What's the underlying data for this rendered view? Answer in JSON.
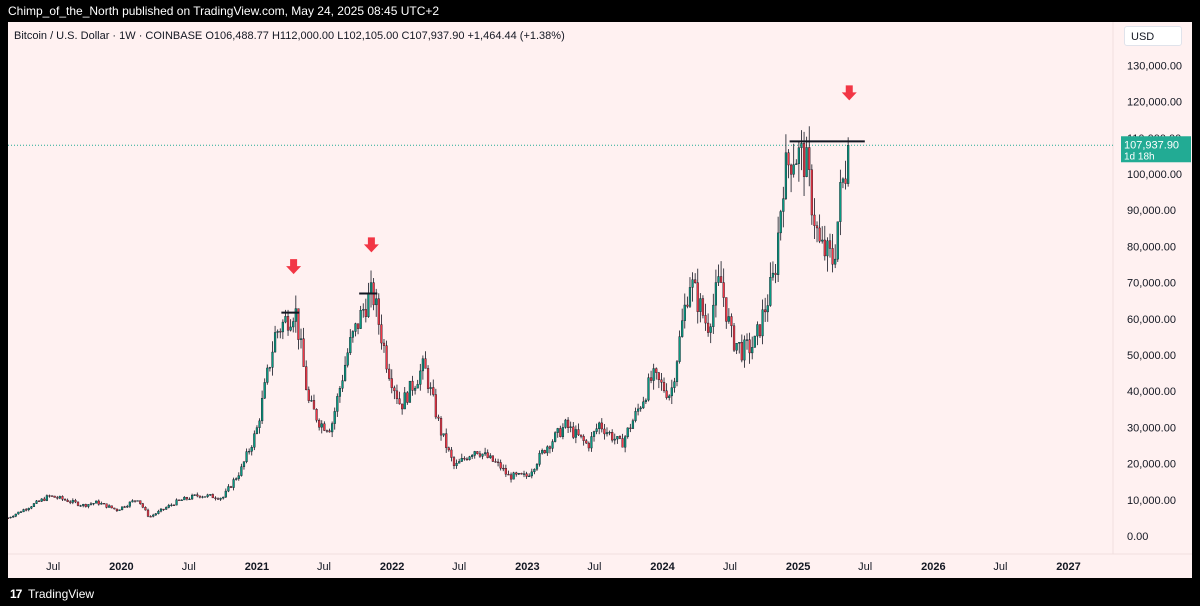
{
  "publish_line": "Chimp_of_the_North published on TradingView.com, May 24, 2025 08:45 UTC+2",
  "header_line": "Bitcoin / U.S. Dollar · 1W · COINBASE  O106,488.77  H112,000.00  L102,105.00  C107,937.90  +1,464.44 (+1.38%)",
  "currency_label": "USD",
  "brand_logo": "17",
  "brand_name": "TradingView",
  "colors": {
    "up": "#089981",
    "down": "#f23645",
    "background": "#fff1f1",
    "arrow": "#f23645",
    "last_price_bg": "#22ab94"
  },
  "chart_data": {
    "type": "candlestick",
    "title": "Bitcoin / U.S. Dollar · 1W · COINBASE",
    "ylim": [
      0,
      135000
    ],
    "y_ticks": [
      "0.00",
      "10,000.00",
      "20,000.00",
      "30,000.00",
      "40,000.00",
      "50,000.00",
      "60,000.00",
      "70,000.00",
      "80,000.00",
      "90,000.00",
      "100,000.00",
      "110,000.00",
      "120,000.00",
      "130,000.00"
    ],
    "y_tick_values": [
      0,
      10000,
      20000,
      30000,
      40000,
      50000,
      60000,
      70000,
      80000,
      90000,
      100000,
      110000,
      120000,
      130000
    ],
    "x_ticks": [
      {
        "label": "Jul",
        "date": "2019-07-01",
        "bold": false
      },
      {
        "label": "2020",
        "date": "2020-01-01",
        "bold": true
      },
      {
        "label": "Jul",
        "date": "2020-07-01",
        "bold": false
      },
      {
        "label": "2021",
        "date": "2021-01-01",
        "bold": true
      },
      {
        "label": "Jul",
        "date": "2021-07-01",
        "bold": false
      },
      {
        "label": "2022",
        "date": "2022-01-01",
        "bold": true
      },
      {
        "label": "Jul",
        "date": "2022-07-01",
        "bold": false
      },
      {
        "label": "2023",
        "date": "2023-01-01",
        "bold": true
      },
      {
        "label": "Jul",
        "date": "2023-07-01",
        "bold": false
      },
      {
        "label": "2024",
        "date": "2024-01-01",
        "bold": true
      },
      {
        "label": "Jul",
        "date": "2024-07-01",
        "bold": false
      },
      {
        "label": "2025",
        "date": "2025-01-01",
        "bold": true
      },
      {
        "label": "Jul",
        "date": "2025-07-01",
        "bold": false
      },
      {
        "label": "2026",
        "date": "2026-01-01",
        "bold": true
      },
      {
        "label": "Jul",
        "date": "2026-07-01",
        "bold": false
      },
      {
        "label": "2027",
        "date": "2027-01-01",
        "bold": true
      }
    ],
    "x_range": [
      "2019-03-01",
      "2027-05-01"
    ],
    "approx_weekly_close_path": [
      [
        "2019-03-01",
        5000
      ],
      [
        "2019-06-20",
        11000
      ],
      [
        "2019-07-15",
        10500
      ],
      [
        "2019-09-20",
        8500
      ],
      [
        "2019-10-28",
        9300
      ],
      [
        "2019-12-20",
        7200
      ],
      [
        "2020-02-14",
        10300
      ],
      [
        "2020-03-16",
        5200
      ],
      [
        "2020-06-01",
        9600
      ],
      [
        "2020-07-28",
        11300
      ],
      [
        "2020-10-01",
        10600
      ],
      [
        "2020-11-20",
        18500
      ],
      [
        "2020-12-31",
        29000
      ],
      [
        "2021-02-20",
        56000
      ],
      [
        "2021-03-15",
        59000
      ],
      [
        "2021-04-14",
        63000
      ],
      [
        "2021-05-20",
        37000
      ],
      [
        "2021-06-22",
        31000
      ],
      [
        "2021-07-20",
        30000
      ],
      [
        "2021-09-06",
        52000
      ],
      [
        "2021-10-20",
        64000
      ],
      [
        "2021-11-10",
        67000
      ],
      [
        "2021-12-20",
        47000
      ],
      [
        "2022-01-24",
        36000
      ],
      [
        "2022-03-28",
        47000
      ],
      [
        "2022-05-12",
        29000
      ],
      [
        "2022-06-18",
        19000
      ],
      [
        "2022-08-14",
        24000
      ],
      [
        "2022-10-20",
        19200
      ],
      [
        "2022-11-10",
        16500
      ],
      [
        "2022-12-31",
        16500
      ],
      [
        "2023-02-20",
        24500
      ],
      [
        "2023-04-14",
        30500
      ],
      [
        "2023-06-14",
        25000
      ],
      [
        "2023-07-14",
        31000
      ],
      [
        "2023-09-11",
        25200
      ],
      [
        "2023-10-23",
        34000
      ],
      [
        "2023-12-05",
        44000
      ],
      [
        "2024-01-23",
        39000
      ],
      [
        "2024-03-14",
        71000
      ],
      [
        "2024-05-01",
        58000
      ],
      [
        "2024-06-05",
        71000
      ],
      [
        "2024-07-05",
        55000
      ],
      [
        "2024-08-05",
        51000
      ],
      [
        "2024-09-06",
        53000
      ],
      [
        "2024-10-29",
        72000
      ],
      [
        "2024-11-22",
        99000
      ],
      [
        "2024-12-17",
        106000
      ],
      [
        "2025-01-20",
        104000
      ],
      [
        "2025-02-27",
        80000
      ],
      [
        "2025-04-07",
        76000
      ],
      [
        "2025-04-25",
        94000
      ],
      [
        "2025-05-22",
        107937.9
      ]
    ],
    "last_price": "107,937.90",
    "last_price_value": 107937.9,
    "countdown": "1d 18h",
    "annotations": [
      {
        "type": "resistance",
        "from": "2021-03-08",
        "to": "2021-04-26",
        "value": 61700
      },
      {
        "type": "resistance",
        "from": "2021-10-04",
        "to": "2021-11-22",
        "value": 67000
      },
      {
        "type": "resistance",
        "from": "2024-12-09",
        "to": "2025-06-30",
        "value": 109000
      },
      {
        "type": "down_arrow",
        "date": "2021-04-10",
        "value": 74000
      },
      {
        "type": "down_arrow",
        "date": "2021-11-06",
        "value": 80000
      },
      {
        "type": "down_arrow",
        "date": "2025-05-19",
        "value": 122000
      }
    ]
  }
}
